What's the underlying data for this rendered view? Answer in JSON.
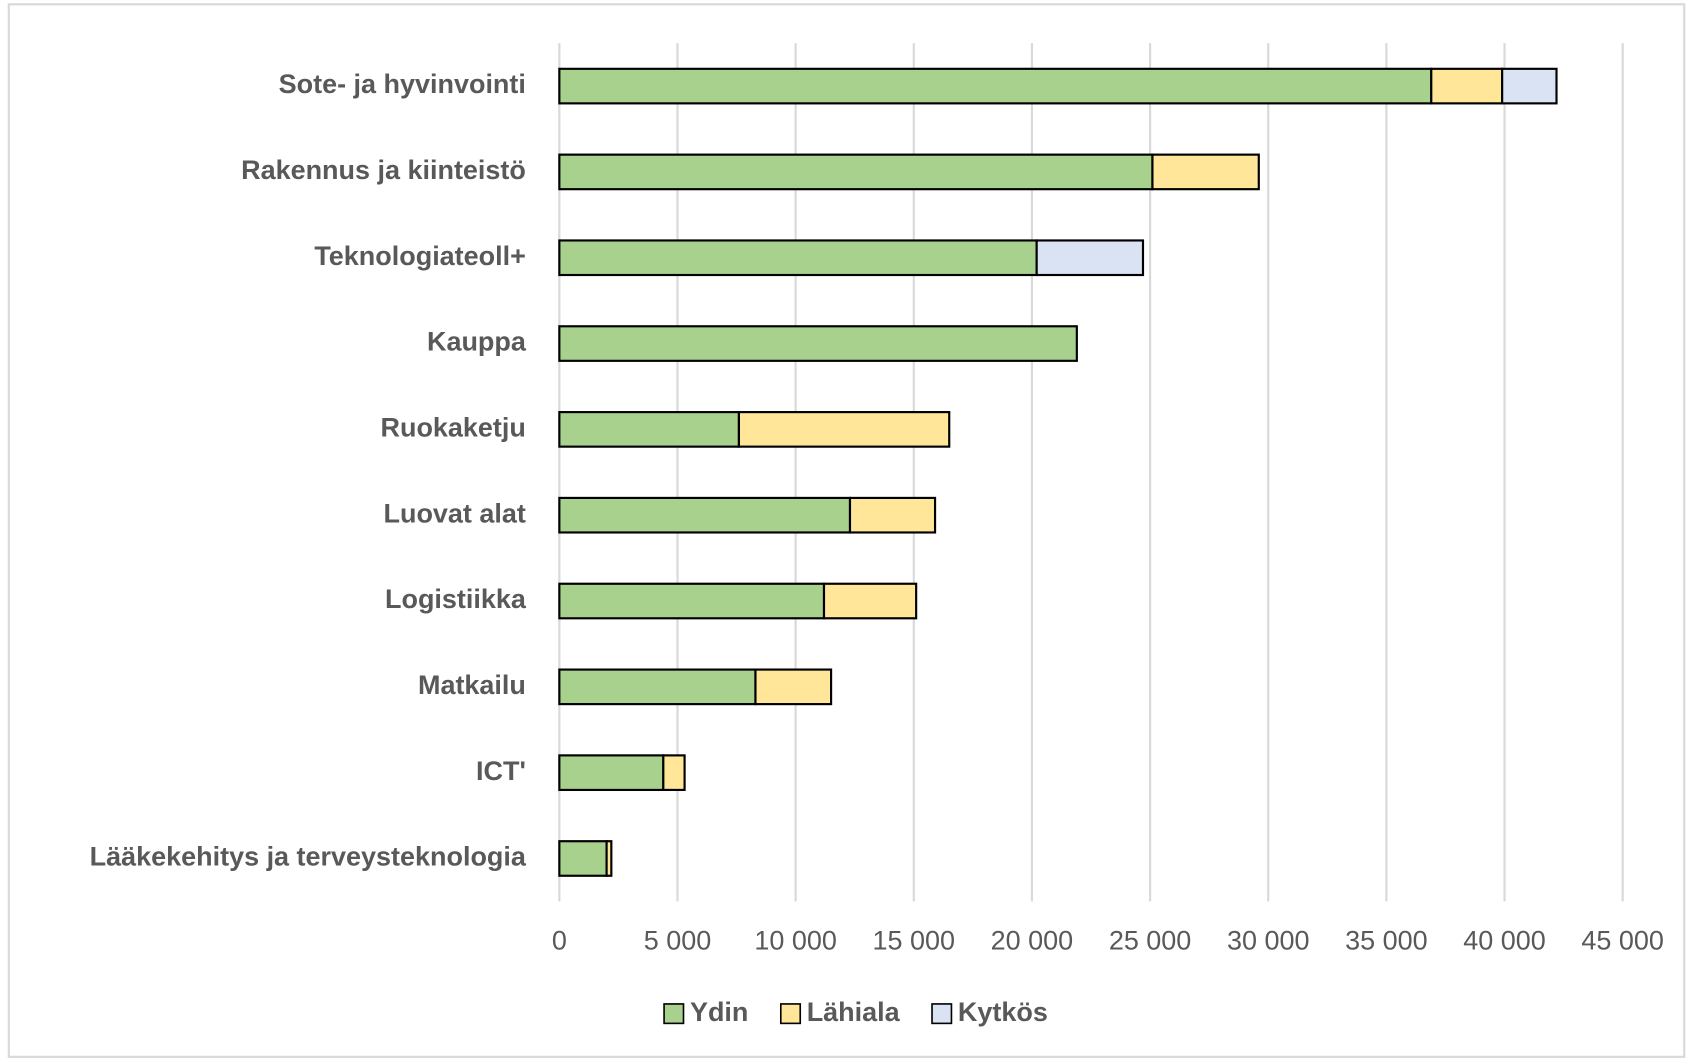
{
  "chart_data": {
    "type": "bar",
    "orientation": "horizontal",
    "stacked": true,
    "categories": [
      "Sote- ja hyvinvointi",
      "Rakennus ja kiinteistö",
      "Teknologiateoll+",
      "Kauppa",
      "Ruokaketju",
      "Luovat alat",
      "Logistiikka",
      "Matkailu",
      "ICT'",
      "Lääkekehitys ja terveysteknologia"
    ],
    "series": [
      {
        "name": "Ydin",
        "color": "#a9d18e",
        "values": [
          36900,
          25100,
          20200,
          21900,
          7600,
          12300,
          11200,
          8300,
          4400,
          2000
        ]
      },
      {
        "name": "Lähiala",
        "color": "#ffe699",
        "values": [
          3000,
          4500,
          0,
          0,
          8900,
          3600,
          3900,
          3200,
          900,
          200
        ]
      },
      {
        "name": "Kytkös",
        "color": "#dae3f3",
        "values": [
          2300,
          0,
          4500,
          0,
          0,
          0,
          0,
          0,
          0,
          0
        ]
      }
    ],
    "xlim": [
      0,
      45000
    ],
    "xticks": [
      0,
      {
        "value": 5000,
        "label": "5 000"
      },
      {
        "value": 10000,
        "label": "10 000"
      },
      {
        "value": 15000,
        "label": "15 000"
      },
      {
        "value": 20000,
        "label": "20 000"
      },
      {
        "value": 25000,
        "label": "25 000"
      },
      {
        "value": 30000,
        "label": "30 000"
      },
      {
        "value": 35000,
        "label": "35 000"
      },
      {
        "value": 40000,
        "label": "40 000"
      },
      {
        "value": 45000,
        "label": "45 000"
      }
    ],
    "grid": true,
    "legend": "bottom"
  }
}
